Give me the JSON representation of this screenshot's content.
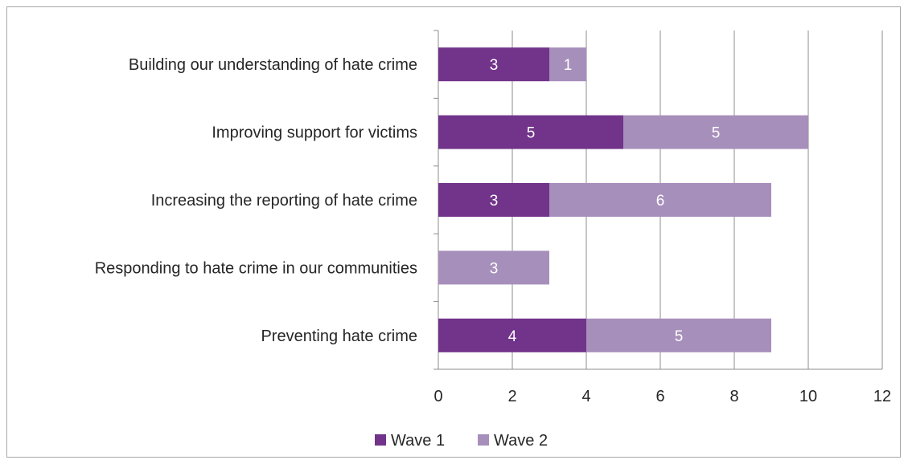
{
  "chart_data": {
    "type": "bar",
    "orientation": "horizontal",
    "stacked": true,
    "categories": [
      "Building our understanding of hate crime",
      "Improving support for victims",
      "Increasing the reporting of hate crime",
      "Responding to hate crime in our communities",
      "Preventing hate crime"
    ],
    "series": [
      {
        "name": "Wave 1",
        "color": "#71348a",
        "values": [
          3,
          5,
          3,
          0,
          4
        ]
      },
      {
        "name": "Wave 2",
        "color": "#a78fbb",
        "values": [
          1,
          5,
          6,
          3,
          5
        ]
      }
    ],
    "xlim": [
      0,
      12
    ],
    "xticks": [
      "0",
      "2",
      "4",
      "6",
      "8",
      "10",
      "12"
    ],
    "grid": true,
    "legend_position": "bottom",
    "title": "",
    "xlabel": "",
    "ylabel": ""
  }
}
